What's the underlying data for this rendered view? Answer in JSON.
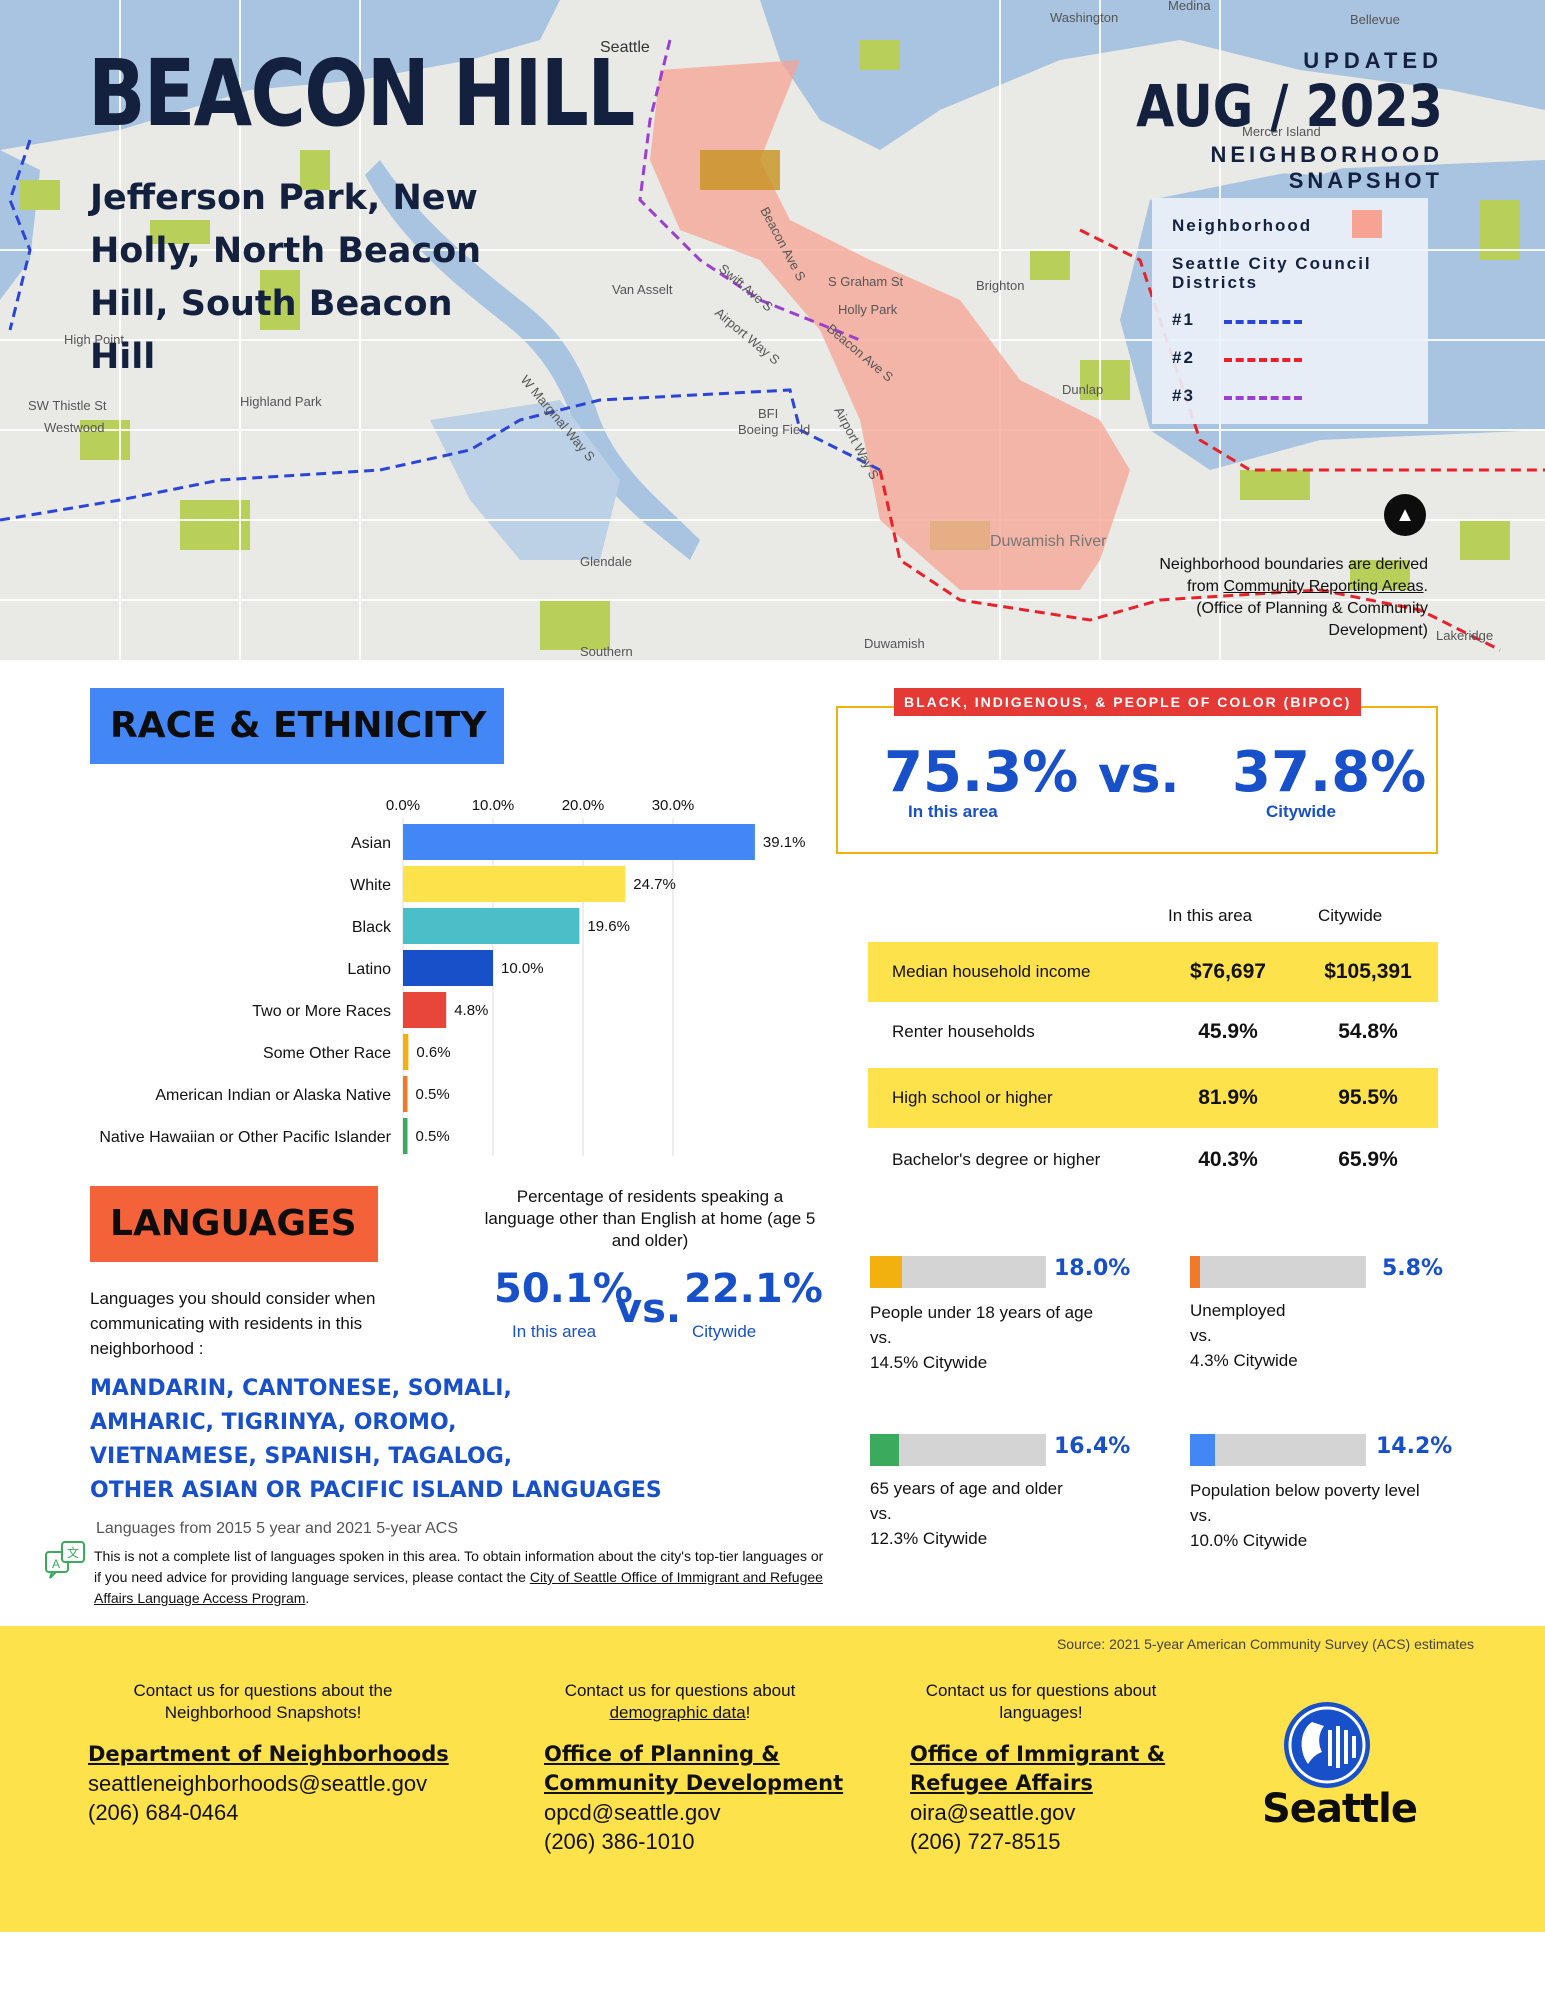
{
  "header": {
    "title": "BEACON HILL",
    "subtitle": "Jefferson Park, New Holly, North Beacon Hill, South Beacon Hill",
    "updated": "UPDATED",
    "date": "AUG / 2023",
    "snapshot_line1": "NEIGHBORHOOD",
    "snapshot_line2": "SNAPSHOT"
  },
  "map": {
    "legend": {
      "neighborhood": "Neighborhood",
      "districts_title": "Seattle City Council Districts",
      "d1": "#1",
      "d2": "#2",
      "d3": "#3"
    },
    "colors": {
      "d1": "#2b45d8",
      "d2": "#e8212b",
      "d3": "#9a3fcf",
      "neighborhood": "#f6a393"
    },
    "labels": {
      "seattle": "Seattle",
      "duwamish_river": "Duwamish River",
      "glendale": "Glendale",
      "bfi": "BFI",
      "boeing_field": "Boeing Field",
      "sw_thistle": "SW Thistle St",
      "westwood": "Westwood",
      "high_point": "High Point",
      "highland_park": "Highland Park",
      "van_asselt": "Van Asselt",
      "brighton": "Brighton",
      "dunlap": "Dunlap",
      "beacon_ave": "Beacon Ave S",
      "graham": "S Graham St",
      "swift_ave": "Swift Ave S",
      "airport_way": "Airport Way S",
      "marginal_way": "W Marginal Way S",
      "holly_park": "Holly Park",
      "washington": "Washington",
      "medina": "Medina",
      "bellevue": "Bellevue",
      "mercer_island": "Mercer Island",
      "duwamish": "Duwamish",
      "southern": "Southern",
      "lakeridge": "Lakeridge"
    },
    "note_line1": "Neighborhood boundaries are derived",
    "note_from": "from ",
    "note_link": "Community Reporting Areas",
    "note_line3": "(Office of Planning & Community",
    "note_line4": "Development)"
  },
  "race": {
    "heading": "RACE & ETHNICITY",
    "chart_data": {
      "type": "bar",
      "orientation": "horizontal",
      "x_ticks": [
        "0.0%",
        "10.0%",
        "20.0%",
        "30.0%"
      ],
      "xlim": [
        0,
        40
      ],
      "categories": [
        "Asian",
        "White",
        "Black",
        "Latino",
        "Two or More Races",
        "Some Other Race",
        "American Indian or Alaska Native",
        "Native Hawaiian or Other Pacific Islander"
      ],
      "values": [
        39.1,
        24.7,
        19.6,
        10.0,
        4.8,
        0.6,
        0.5,
        0.5
      ],
      "value_labels": [
        "39.1%",
        "24.7%",
        "19.6%",
        "10.0%",
        "4.8%",
        "0.6%",
        "0.5%",
        "0.5%"
      ],
      "colors": [
        "#4287f5",
        "#fde24b",
        "#4bbfc8",
        "#1750c9",
        "#e8463a",
        "#f2b10f",
        "#f07a28",
        "#3aaa5c"
      ]
    }
  },
  "bipoc": {
    "tag": "BLACK, INDIGENOUS, & PEOPLE OF COLOR (BIPOC)",
    "area_value": "75.3%",
    "area_label": "In this area",
    "vs": "vs.",
    "city_value": "37.8%",
    "city_label": "Citywide"
  },
  "table": {
    "col_area": "In this area",
    "col_city": "Citywide",
    "rows": [
      {
        "label": "Median household income",
        "area": "$76,697",
        "city": "$105,391"
      },
      {
        "label": "Renter households",
        "area": "45.9%",
        "city": "54.8%"
      },
      {
        "label": "High school or higher",
        "area": "81.9%",
        "city": "95.5%"
      },
      {
        "label": "Bachelor's degree or higher",
        "area": "40.3%",
        "city": "65.9%"
      }
    ]
  },
  "stats": [
    {
      "pct": "18.0%",
      "fraction": 0.18,
      "color": "#f2b10f",
      "label": "People under 18 years of age",
      "vs": "vs.",
      "city": "14.5% Citywide"
    },
    {
      "pct": "5.8%",
      "fraction": 0.058,
      "color": "#f07a28",
      "label": "Unemployed",
      "vs": "vs.",
      "city": "4.3% Citywide"
    },
    {
      "pct": "16.4%",
      "fraction": 0.164,
      "color": "#3aaa5c",
      "label": "65 years of age and older",
      "vs": "vs.",
      "city": "12.3% Citywide"
    },
    {
      "pct": "14.2%",
      "fraction": 0.142,
      "color": "#4287f5",
      "label": "Population below poverty level",
      "vs": "vs.",
      "city": "10.0% Citywide"
    }
  ],
  "languages": {
    "heading": "LANGUAGES",
    "intro": "Languages you should consider when communicating with residents in this neighborhood :",
    "pct_title": "Percentage of residents speaking a language other than English at home (age 5 and older)",
    "area_value": "50.1%",
    "area_label": "In this area",
    "vs": "vs.",
    "city_value": "22.1%",
    "city_label": "Citywide",
    "list": [
      "MANDARIN, CANTONESE, SOMALI,",
      "AMHARIC, TIGRINYA, OROMO,",
      "VIETNAMESE, SPANISH, TAGALOG,",
      "OTHER ASIAN OR PACIFIC ISLAND LANGUAGES"
    ],
    "source": "Languages from 2015 5 year and 2021 5-year ACS",
    "note_text": "This is not a complete list of languages spoken in this area. To obtain information about the city's top-tier languages or if you need advice for providing language services, please contact the ",
    "note_link": "City of Seattle Office of Immigrant and Refugee Affairs Language Access Program",
    "note_end": "."
  },
  "footer": {
    "source": "Source: 2021 5-year American Community Survey (ACS) estimates",
    "contacts": [
      {
        "question": "Contact us for questions about the Neighborhood Snapshots!",
        "org": "Department of Neighborhoods",
        "email": "seattleneighborhoods@seattle.gov",
        "phone": "(206) 684-0464"
      },
      {
        "question_pre": "Contact us for questions about",
        "question_link": "demographic data",
        "question_end": "!",
        "org_line1": "Office of Planning &",
        "org_line2": "Community Development",
        "email": "opcd@seattle.gov",
        "phone": "(206) 386-1010"
      },
      {
        "question": "Contact us for questions about languages!",
        "org_line1": "Office of Immigrant &",
        "org_line2": "Refugee Affairs",
        "email": "oira@seattle.gov",
        "phone": "(206) 727-8515"
      }
    ],
    "logo_text": "Seattle"
  }
}
